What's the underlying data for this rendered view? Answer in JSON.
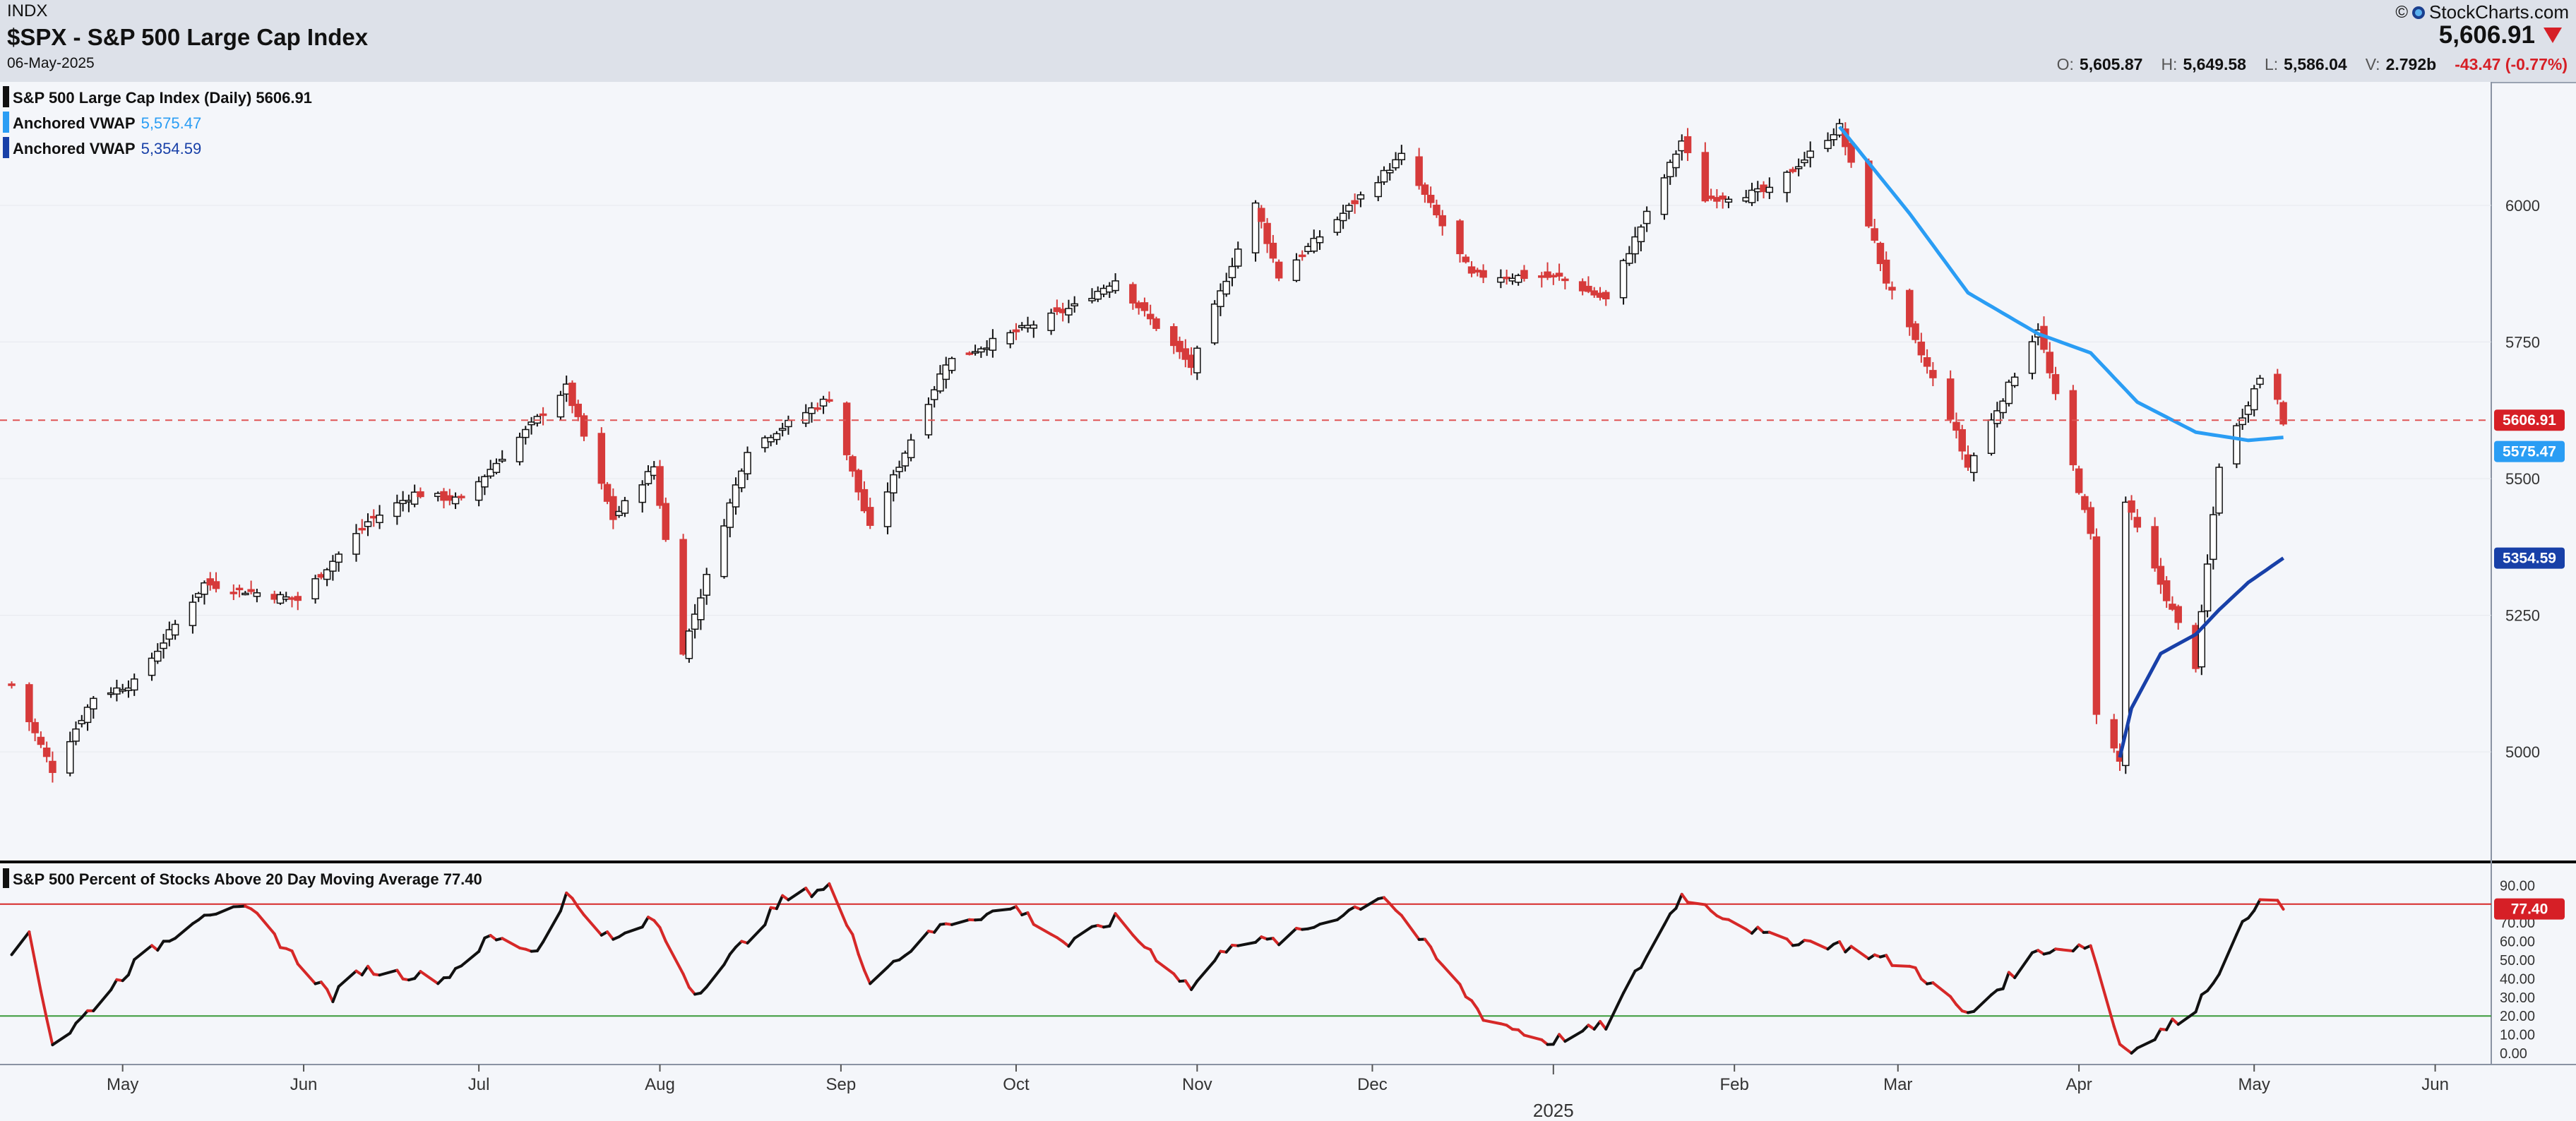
{
  "header": {
    "source": "INDX",
    "title": "$SPX - S&P 500 Large Cap Index",
    "date": "06-May-2025",
    "copyright": "©",
    "brand": "StockCharts.com",
    "price": "5,606.91",
    "ohlc": [
      {
        "k": "O:",
        "v": "5,605.87"
      },
      {
        "k": "H:",
        "v": "5,649.58"
      },
      {
        "k": "L:",
        "v": "5,586.04"
      },
      {
        "k": "V:",
        "v": "2.792b"
      }
    ],
    "change": "-43.47 (-0.77%)"
  },
  "colors": {
    "up": "#111111",
    "down": "#d63a3a",
    "vwap1": "#2a9df4",
    "vwap2": "#1840a8",
    "price_line": "#e05555",
    "breadth_upper": "#d62828",
    "breadth_lower": "#3a9a3a"
  },
  "legend": {
    "main": [
      {
        "label": "S&P 500 Large Cap Index (Daily) 5606.91",
        "color": "#111111"
      },
      {
        "label": "Anchored VWAP",
        "value": "5,575.47",
        "color": "#2a9df4"
      },
      {
        "label": "Anchored VWAP",
        "value": "5,354.59",
        "color": "#1840a8"
      }
    ],
    "lower": "S&P 500 Percent of Stocks Above 20 Day Moving Average 77.40"
  },
  "chart_data": [
    {
      "type": "candlestick",
      "title": "S&P 500 Large Cap Index (Daily)",
      "ylim": [
        4800,
        6200
      ],
      "yticks": [
        "6000",
        "5750",
        "5500",
        "5250",
        "5000"
      ],
      "xticks": [
        "May",
        "Jun",
        "Jul",
        "Aug",
        "Sep",
        "Oct",
        "Nov",
        "Dec",
        "Feb",
        "Mar",
        "Apr",
        "May",
        "Jun"
      ],
      "year_label": "2025",
      "last_price": 5606.91,
      "price_tag": "5606.91",
      "vwap_tags": [
        "5575.47",
        "5354.59"
      ],
      "close_anchors": [
        [
          "2024-04-12",
          5123
        ],
        [
          "2024-04-19",
          4967
        ],
        [
          "2024-04-26",
          5100
        ],
        [
          "2024-05-03",
          5127
        ],
        [
          "2024-05-15",
          5308
        ],
        [
          "2024-05-31",
          5278
        ],
        [
          "2024-06-12",
          5421
        ],
        [
          "2024-06-20",
          5473
        ],
        [
          "2024-06-28",
          5460
        ],
        [
          "2024-07-16",
          5667
        ],
        [
          "2024-07-24",
          5427
        ],
        [
          "2024-07-31",
          5522
        ],
        [
          "2024-08-05",
          5186
        ],
        [
          "2024-08-16",
          5554
        ],
        [
          "2024-08-30",
          5648
        ],
        [
          "2024-09-06",
          5408
        ],
        [
          "2024-09-19",
          5713
        ],
        [
          "2024-10-11",
          5815
        ],
        [
          "2024-10-18",
          5864
        ],
        [
          "2024-10-31",
          5705
        ],
        [
          "2024-11-11",
          6001
        ],
        [
          "2024-11-15",
          5870
        ],
        [
          "2024-12-06",
          6090
        ],
        [
          "2024-12-18",
          5872
        ],
        [
          "2025-01-02",
          5868
        ],
        [
          "2025-01-10",
          5827
        ],
        [
          "2025-01-23",
          6118
        ],
        [
          "2025-01-27",
          6012
        ],
        [
          "2025-02-07",
          6026
        ],
        [
          "2025-02-19",
          6144
        ],
        [
          "2025-02-27",
          5861
        ],
        [
          "2025-03-10",
          5614
        ],
        [
          "2025-03-13",
          5521
        ],
        [
          "2025-03-25",
          5776
        ],
        [
          "2025-04-03",
          5396
        ],
        [
          "2025-04-04",
          5074
        ],
        [
          "2025-04-08",
          4982
        ],
        [
          "2025-04-09",
          5457
        ],
        [
          "2025-04-21",
          5158
        ],
        [
          "2025-04-25",
          5525
        ],
        [
          "2025-05-02",
          5686
        ],
        [
          "2025-05-05",
          5650
        ],
        [
          "2025-05-06",
          5606.91
        ]
      ],
      "vwap1": [
        [
          "2025-02-19",
          6144
        ],
        [
          "2025-03-03",
          5985
        ],
        [
          "2025-03-13",
          5840
        ],
        [
          "2025-03-25",
          5765
        ],
        [
          "2025-04-03",
          5730
        ],
        [
          "2025-04-11",
          5640
        ],
        [
          "2025-04-21",
          5585
        ],
        [
          "2025-04-30",
          5570
        ],
        [
          "2025-05-06",
          5575.47
        ]
      ],
      "vwap2": [
        [
          "2025-04-08",
          4990
        ],
        [
          "2025-04-10",
          5080
        ],
        [
          "2025-04-15",
          5180
        ],
        [
          "2025-04-21",
          5215
        ],
        [
          "2025-04-25",
          5260
        ],
        [
          "2025-04-30",
          5310
        ],
        [
          "2025-05-06",
          5354.59
        ]
      ]
    },
    {
      "type": "line",
      "title": "S&P 500 Percent of Stocks Above 20 Day Moving Average",
      "last_value": 77.4,
      "value_tag": "77.40",
      "ylim": [
        0,
        100
      ],
      "yticks": [
        "90.00",
        "80.00",
        "70.00",
        "60.00",
        "50.00",
        "40.00",
        "30.00",
        "20.00",
        "10.00",
        "0.00"
      ],
      "upper_line": 80,
      "lower_line": 20,
      "anchors": [
        [
          "2024-04-12",
          50
        ],
        [
          "2024-04-15",
          65
        ],
        [
          "2024-04-19",
          5
        ],
        [
          "2024-04-22",
          12
        ],
        [
          "2024-05-03",
          48
        ],
        [
          "2024-05-15",
          76
        ],
        [
          "2024-05-23",
          76
        ],
        [
          "2024-06-06",
          30
        ],
        [
          "2024-06-11",
          45
        ],
        [
          "2024-06-25",
          40
        ],
        [
          "2024-07-03",
          62
        ],
        [
          "2024-07-11",
          55
        ],
        [
          "2024-07-16",
          85
        ],
        [
          "2024-07-24",
          60
        ],
        [
          "2024-07-31",
          72
        ],
        [
          "2024-08-07",
          32
        ],
        [
          "2024-08-12",
          48
        ],
        [
          "2024-08-22",
          82
        ],
        [
          "2024-08-30",
          90
        ],
        [
          "2024-09-06",
          40
        ],
        [
          "2024-09-19",
          70
        ],
        [
          "2024-10-01",
          78
        ],
        [
          "2024-10-10",
          58
        ],
        [
          "2024-10-18",
          72
        ],
        [
          "2024-10-31",
          35
        ],
        [
          "2024-11-07",
          60
        ],
        [
          "2024-11-15",
          60
        ],
        [
          "2024-12-03",
          85
        ],
        [
          "2024-12-20",
          20
        ],
        [
          "2024-12-31",
          6
        ],
        [
          "2025-01-10",
          15
        ],
        [
          "2025-01-23",
          85
        ],
        [
          "2025-02-07",
          62
        ],
        [
          "2025-02-19",
          58
        ],
        [
          "2025-03-04",
          45
        ],
        [
          "2025-03-13",
          20
        ],
        [
          "2025-03-25",
          55
        ],
        [
          "2025-04-03",
          58
        ],
        [
          "2025-04-08",
          5
        ],
        [
          "2025-04-11",
          2
        ],
        [
          "2025-04-21",
          25
        ],
        [
          "2025-04-25",
          45
        ],
        [
          "2025-05-02",
          85
        ],
        [
          "2025-05-06",
          77.4
        ]
      ]
    }
  ]
}
